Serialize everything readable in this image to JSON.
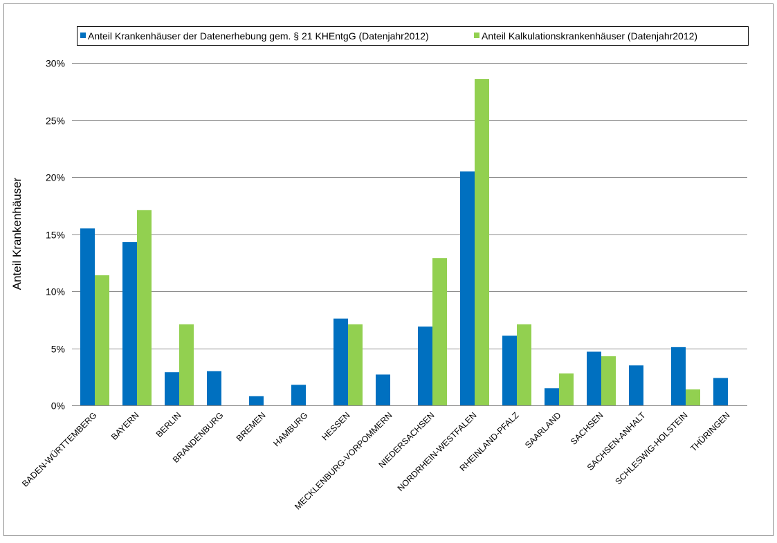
{
  "chart_data": {
    "type": "bar",
    "title": "",
    "xlabel": "",
    "ylabel": "Anteil Krankenhäuser",
    "ylim": [
      0,
      0.3
    ],
    "yticks": [
      0,
      0.05,
      0.1,
      0.15,
      0.2,
      0.25,
      0.3
    ],
    "ytick_labels": [
      "0%",
      "5%",
      "10%",
      "15%",
      "20%",
      "25%",
      "30%"
    ],
    "grid": true,
    "legend_position": "top",
    "categories": [
      "BADEN-WÜRTTEMBERG",
      "BAYERN",
      "BERLIN",
      "BRANDENBURG",
      "BREMEN",
      "HAMBURG",
      "HESSEN",
      "MECKLENBURG-VORPOMMERN",
      "NIEDERSACHSEN",
      "NORDRHEIN-WESTFALEN",
      "RHEINLAND-PFALZ",
      "SAARLAND",
      "SACHSEN",
      "SACHSEN-ANHALT",
      "SCHLESWIG-HOLSTEIN",
      "THÜRINGEN"
    ],
    "series": [
      {
        "name": "Anteil Krankenhäuser der Datenerhebung gem. § 21 KHEntgG (Datenjahr2012)",
        "color": "#0070c0",
        "values": [
          0.155,
          0.143,
          0.029,
          0.03,
          0.008,
          0.018,
          0.076,
          0.027,
          0.069,
          0.205,
          0.061,
          0.015,
          0.047,
          0.035,
          0.051,
          0.024
        ]
      },
      {
        "name": "Anteil Kalkulationskrankenhäuser (Datenjahr2012)",
        "color": "#92d050",
        "values": [
          0.114,
          0.171,
          0.071,
          0,
          0,
          0,
          0.071,
          0,
          0.129,
          0.286,
          0.071,
          0.028,
          0.043,
          0,
          0.014,
          0
        ]
      }
    ]
  }
}
